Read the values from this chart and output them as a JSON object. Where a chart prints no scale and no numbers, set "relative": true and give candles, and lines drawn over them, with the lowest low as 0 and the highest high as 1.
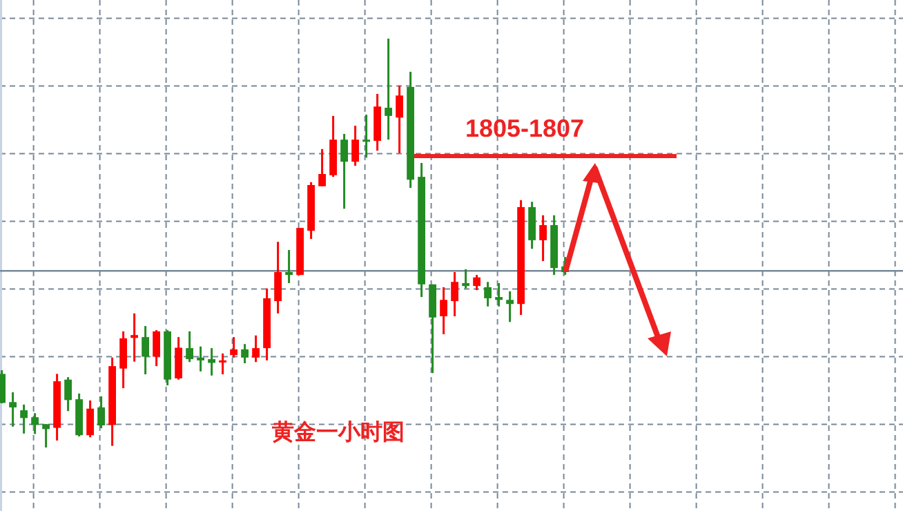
{
  "chart_data": {
    "type": "candlestick",
    "relative": true,
    "grid": true,
    "categories": [
      null,
      null,
      null,
      null,
      null,
      null,
      null,
      null,
      null,
      null,
      null,
      null,
      null,
      null,
      null,
      null,
      null,
      null,
      null,
      null,
      null,
      null,
      null,
      null,
      null,
      null,
      null,
      null,
      null,
      null,
      null,
      null,
      null,
      null,
      null,
      null,
      null,
      null,
      null,
      null,
      null,
      null,
      null,
      null,
      null,
      null,
      null,
      null,
      null,
      null,
      null,
      null
    ],
    "ohlc": [
      [
        0.18,
        0.189,
        0.108,
        0.109
      ],
      [
        0.111,
        0.135,
        0.051,
        0.098
      ],
      [
        0.091,
        0.105,
        0.034,
        0.072
      ],
      [
        0.074,
        0.084,
        0.033,
        0.055
      ],
      [
        0.057,
        0.057,
        0,
        0.045
      ],
      [
        0.048,
        0.18,
        0.017,
        0.162
      ],
      [
        0.166,
        0.172,
        0.089,
        0.116
      ],
      [
        0.118,
        0.132,
        0.027,
        0.03
      ],
      [
        0.03,
        0.115,
        0.025,
        0.095
      ],
      [
        0.098,
        0.125,
        0.047,
        0.054
      ],
      [
        0.055,
        0.22,
        0.004,
        0.199
      ],
      [
        0.193,
        0.284,
        0.145,
        0.267
      ],
      [
        0.268,
        0.328,
        0.21,
        0.275
      ],
      [
        0.27,
        0.297,
        0.179,
        0.222
      ],
      [
        0.222,
        0.287,
        0.199,
        0.284
      ],
      [
        0.284,
        0.287,
        0.152,
        0.166
      ],
      [
        0.169,
        0.27,
        0.166,
        0.244
      ],
      [
        0.243,
        0.284,
        0.209,
        0.216
      ],
      [
        0.22,
        0.247,
        0.186,
        0.213
      ],
      [
        0.216,
        0.243,
        0.176,
        0.207
      ],
      [
        0.21,
        0.23,
        0.179,
        0.213
      ],
      [
        0.226,
        0.27,
        0.22,
        0.24
      ],
      [
        0.24,
        0.253,
        0.206,
        0.22
      ],
      [
        0.22,
        0.274,
        0.209,
        0.243
      ],
      [
        0.243,
        0.389,
        0.213,
        0.365
      ],
      [
        0.358,
        0.503,
        0.328,
        0.429
      ],
      [
        0.429,
        0.483,
        0.402,
        0.422
      ],
      [
        0.422,
        0.537,
        0.422,
        0.537
      ],
      [
        0.53,
        0.649,
        0.51,
        0.642
      ],
      [
        0.639,
        0.73,
        0.639,
        0.669
      ],
      [
        0.666,
        0.811,
        0.662,
        0.753
      ],
      [
        0.753,
        0.767,
        0.584,
        0.699
      ],
      [
        0.699,
        0.787,
        0.689,
        0.753
      ],
      [
        0.753,
        0.814,
        0.709,
        0.75
      ],
      [
        0.75,
        0.865,
        0.726,
        0.834
      ],
      [
        0.831,
        1,
        0.753,
        0.811
      ],
      [
        0.807,
        0.885,
        0.72,
        0.861
      ],
      [
        0.882,
        0.919,
        0.635,
        0.655
      ],
      [
        0.662,
        0.696,
        0.368,
        0.399
      ],
      [
        0.399,
        0.399,
        0.182,
        0.318
      ],
      [
        0.321,
        0.392,
        0.277,
        0.361
      ],
      [
        0.358,
        0.429,
        0.321,
        0.405
      ],
      [
        0.402,
        0.436,
        0.389,
        0.395
      ],
      [
        0.395,
        0.422,
        0.385,
        0.416
      ],
      [
        0.392,
        0.405,
        0.345,
        0.365
      ],
      [
        0.368,
        0.402,
        0.345,
        0.361
      ],
      [
        0.361,
        0.382,
        0.307,
        0.351
      ],
      [
        0.351,
        0.605,
        0.324,
        0.588
      ],
      [
        0.588,
        0.601,
        0.486,
        0.507
      ],
      [
        0.507,
        0.568,
        0.456,
        0.544
      ],
      [
        0.544,
        0.568,
        0.422,
        0.439
      ],
      [
        0.443,
        0.466,
        0.422,
        0.429
      ]
    ],
    "colors": [
      "#228b22",
      "#228b22",
      "#228b22",
      "#228b22",
      "#228b22",
      "#ff0000",
      "#228b22",
      "#228b22",
      "#ff0000",
      "#228b22",
      "#ff0000",
      "#ff0000",
      "#ff0000",
      "#228b22",
      "#ff0000",
      "#228b22",
      "#ff0000",
      "#228b22",
      "#228b22",
      "#228b22",
      "#ff0000",
      "#ff0000",
      "#228b22",
      "#ff0000",
      "#ff0000",
      "#ff0000",
      "#228b22",
      "#ff0000",
      "#ff0000",
      "#ff0000",
      "#ff0000",
      "#228b22",
      "#ff0000",
      "#228b22",
      "#ff0000",
      "#228b22",
      "#ff0000",
      "#228b22",
      "#228b22",
      "#228b22",
      "#ff0000",
      "#ff0000",
      "#228b22",
      "#ff0000",
      "#228b22",
      "#228b22",
      "#228b22",
      "#ff0000",
      "#228b22",
      "#ff0000",
      "#228b22",
      "#228b22"
    ],
    "ref_lines": [
      {
        "axis": "y",
        "value": 0.713,
        "color": "#ee2222",
        "line_style": "solid"
      },
      {
        "axis": "y",
        "value": 0.432,
        "color": "#778899"
      }
    ],
    "annotations": [
      "1805-1807",
      "黄金一小时图"
    ]
  }
}
